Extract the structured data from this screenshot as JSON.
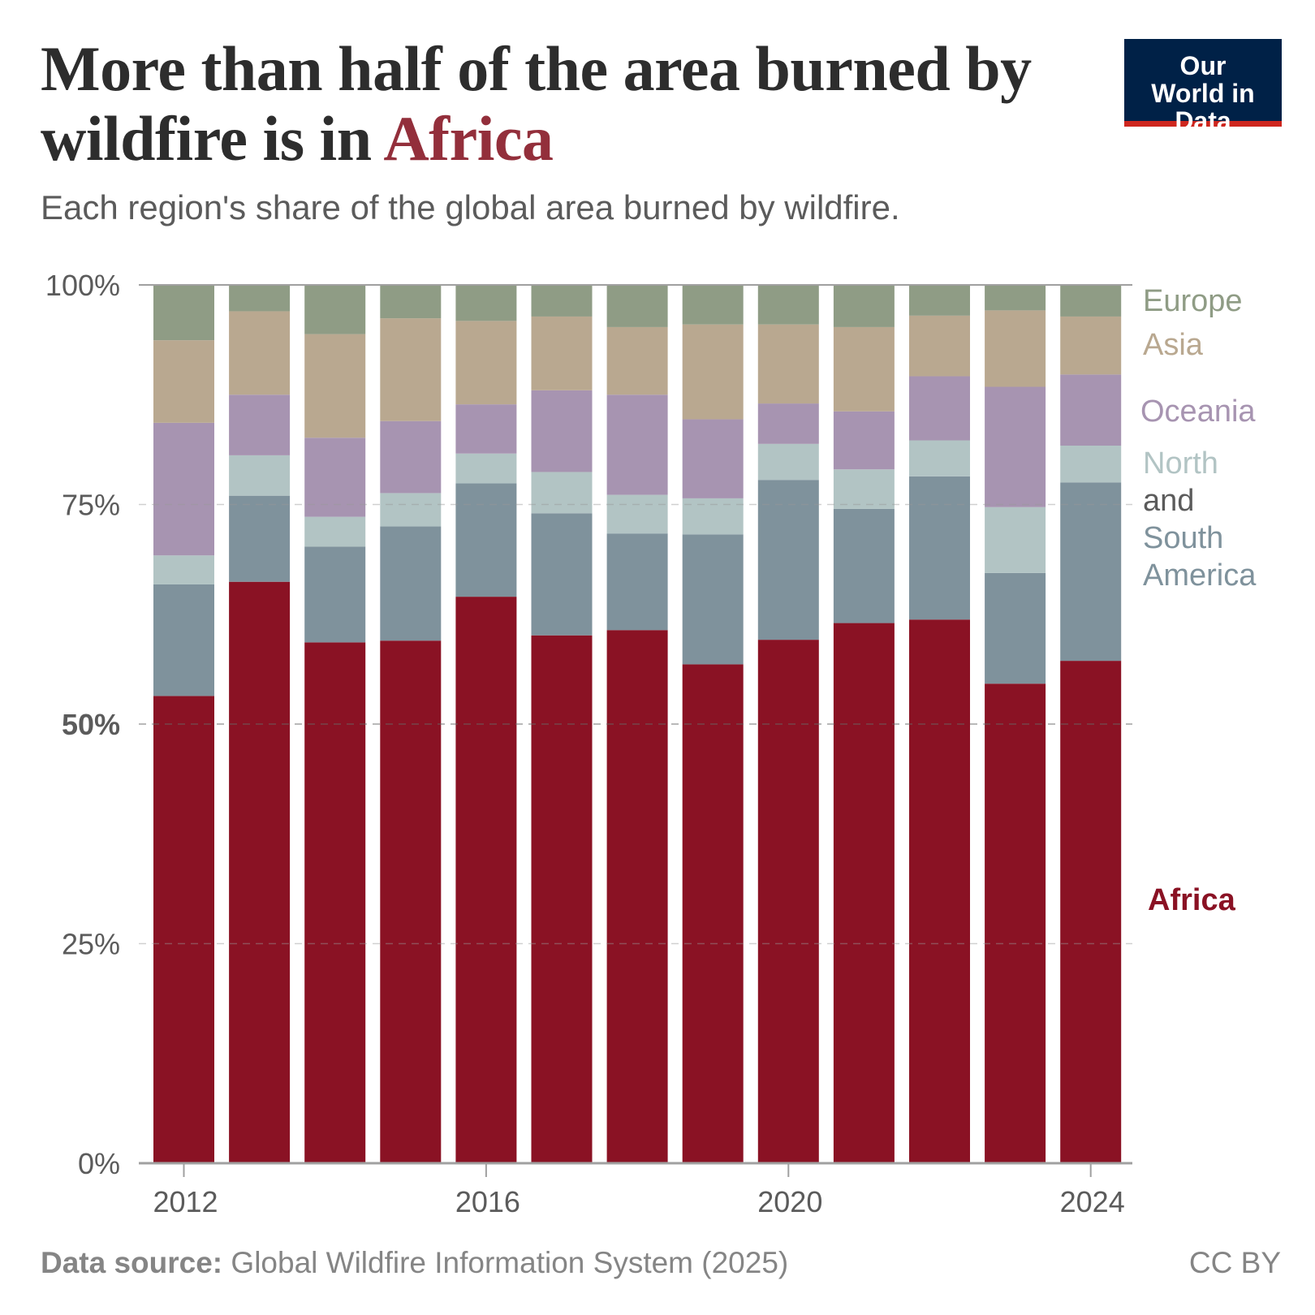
{
  "header": {
    "title_part1": "More than half of the area burned by wildfire is in ",
    "title_highlight": "Africa",
    "subtitle": "Each region's share of the global area burned by wildfire.",
    "logo": "Our World in Data"
  },
  "footer": {
    "source_label": "Data source:",
    "source_text": " Global Wildfire Information System (2025)",
    "license": "CC BY"
  },
  "legend": {
    "europe": "Europe",
    "asia": "Asia",
    "oceania": "Oceania",
    "north": "North",
    "and": "and",
    "south": "South",
    "america": "America",
    "africa": "Africa"
  },
  "chart_data": {
    "type": "bar",
    "stacked": true,
    "title": "More than half of the area burned by wildfire is in Africa",
    "subtitle": "Each region's share of the global area burned by wildfire.",
    "categories": [
      "2012",
      "2013",
      "2014",
      "2015",
      "2016",
      "2017",
      "2018",
      "2019",
      "2020",
      "2021",
      "2022",
      "2023",
      "2024"
    ],
    "x_ticks": [
      "2012",
      "2016",
      "2020",
      "2024"
    ],
    "y_ticks": [
      "0%",
      "25%",
      "50%",
      "75%",
      "100%"
    ],
    "ylim": [
      0,
      100
    ],
    "grid": true,
    "legend_placement": "right",
    "series": [
      {
        "name": "Africa",
        "color": "#8a1224",
        "values": [
          53.2,
          66.2,
          59.3,
          59.5,
          64.5,
          60.1,
          60.7,
          56.8,
          59.6,
          61.5,
          61.9,
          54.6,
          57.2
        ]
      },
      {
        "name": "South America",
        "color": "#7f929c",
        "values": [
          12.7,
          9.8,
          10.9,
          13.0,
          12.9,
          13.9,
          11.0,
          14.8,
          18.2,
          13.0,
          16.3,
          12.6,
          20.3
        ]
      },
      {
        "name": "North America",
        "color": "#b2c4c4",
        "values": [
          3.3,
          4.6,
          3.4,
          3.8,
          3.4,
          4.7,
          4.4,
          4.1,
          4.1,
          4.5,
          4.1,
          7.5,
          4.2
        ]
      },
      {
        "name": "Oceania",
        "color": "#a794b1",
        "values": [
          15.1,
          6.9,
          9.0,
          8.2,
          5.6,
          9.3,
          11.4,
          9.0,
          4.6,
          6.6,
          7.3,
          13.7,
          8.1
        ]
      },
      {
        "name": "Asia",
        "color": "#b9a890",
        "values": [
          9.4,
          9.5,
          11.8,
          11.7,
          9.5,
          8.4,
          7.7,
          10.8,
          9.0,
          9.6,
          6.9,
          8.7,
          6.6
        ]
      },
      {
        "name": "Europe",
        "color": "#8f9c85",
        "values": [
          6.3,
          3.0,
          5.6,
          3.8,
          4.1,
          3.6,
          4.8,
          4.5,
          4.5,
          4.8,
          3.5,
          2.9,
          3.6
        ]
      }
    ]
  }
}
